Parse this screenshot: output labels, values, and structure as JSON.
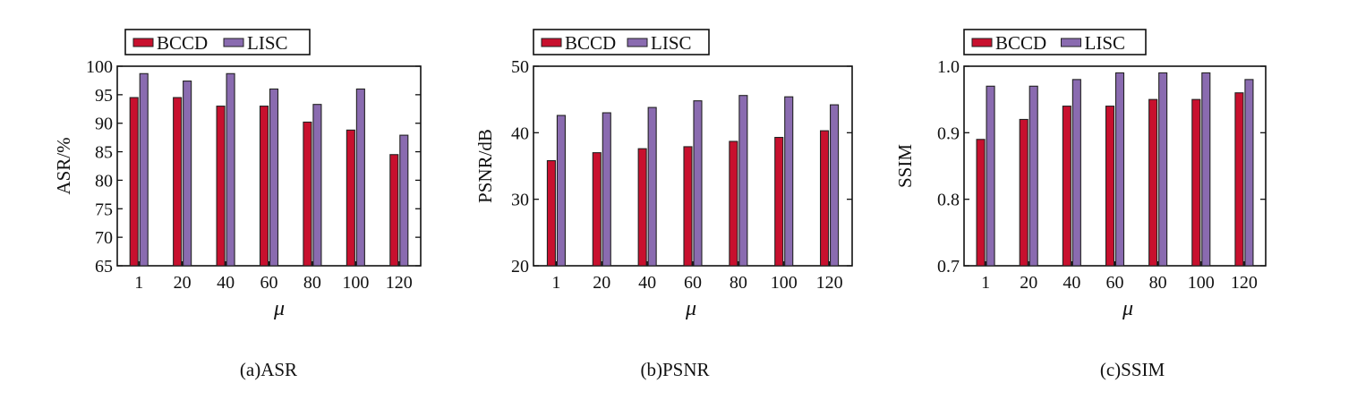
{
  "series_colors": {
    "BCCD": "#c8102e",
    "LISC": "#8a6bb0"
  },
  "chart_data": [
    {
      "type": "bar",
      "caption": "(a)ASR",
      "xlabel": "μ",
      "ylabel": "ASR/%",
      "categories": [
        "1",
        "20",
        "40",
        "60",
        "80",
        "100",
        "120"
      ],
      "ylim": [
        65,
        100
      ],
      "yticks": [
        "65",
        "70",
        "75",
        "80",
        "85",
        "90",
        "95",
        "100"
      ],
      "ytick_values": [
        65,
        70,
        75,
        80,
        85,
        90,
        95,
        100
      ],
      "legend": [
        "BCCD",
        "LISC"
      ],
      "legend_position": "top-left",
      "series": [
        {
          "name": "BCCD",
          "values": [
            94.5,
            94.5,
            93.0,
            93.0,
            90.2,
            88.8,
            84.5
          ]
        },
        {
          "name": "LISC",
          "values": [
            98.7,
            97.4,
            98.7,
            96.0,
            93.3,
            96.0,
            87.9
          ]
        }
      ]
    },
    {
      "type": "bar",
      "caption": "(b)PSNR",
      "xlabel": "μ",
      "ylabel": "PSNR/dB",
      "categories": [
        "1",
        "20",
        "40",
        "60",
        "80",
        "100",
        "120"
      ],
      "ylim": [
        20,
        50
      ],
      "yticks": [
        "20",
        "30",
        "40",
        "50"
      ],
      "ytick_values": [
        20,
        30,
        40,
        50
      ],
      "legend": [
        "BCCD",
        "LISC"
      ],
      "legend_position": "top-left",
      "series": [
        {
          "name": "BCCD",
          "values": [
            35.8,
            37.0,
            37.6,
            37.9,
            38.7,
            39.3,
            40.3
          ]
        },
        {
          "name": "LISC",
          "values": [
            42.6,
            43.0,
            43.8,
            44.8,
            45.6,
            45.4,
            44.2
          ]
        }
      ]
    },
    {
      "type": "bar",
      "caption": "(c)SSIM",
      "xlabel": "μ",
      "ylabel": "SSIM",
      "categories": [
        "1",
        "20",
        "40",
        "60",
        "80",
        "100",
        "120"
      ],
      "ylim": [
        0.7,
        1.0
      ],
      "yticks": [
        "0.7",
        "0.8",
        "0.9",
        "1.0"
      ],
      "ytick_values": [
        0.7,
        0.8,
        0.9,
        1.0
      ],
      "legend": [
        "BCCD",
        "LISC"
      ],
      "legend_position": "top-left",
      "series": [
        {
          "name": "BCCD",
          "values": [
            0.89,
            0.92,
            0.94,
            0.94,
            0.95,
            0.95,
            0.96
          ]
        },
        {
          "name": "LISC",
          "values": [
            0.97,
            0.97,
            0.98,
            0.99,
            0.99,
            0.99,
            0.98
          ]
        }
      ]
    }
  ]
}
